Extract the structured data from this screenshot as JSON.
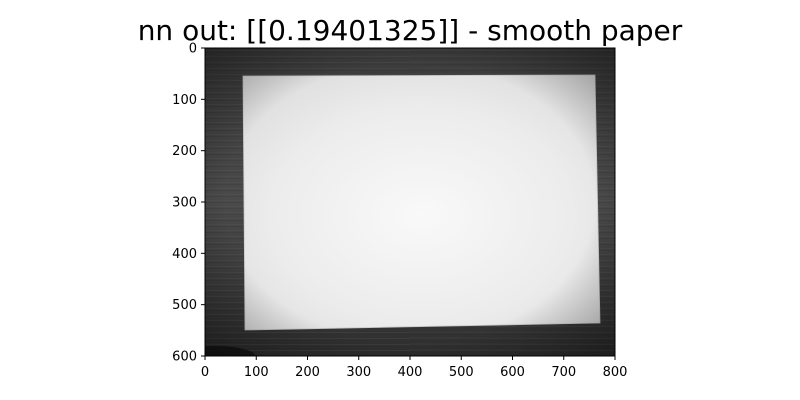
{
  "figure": {
    "title": "nn out: [[0.19401325]] - smooth paper",
    "image_description_icon": "grayscale-photo-icon",
    "image_extent": {
      "x_range": [
        0,
        800
      ],
      "y_range": [
        0,
        600
      ]
    },
    "x_ticks": [
      "0",
      "100",
      "200",
      "300",
      "400",
      "500",
      "600",
      "700",
      "800"
    ],
    "y_ticks": [
      "0",
      "100",
      "200",
      "300",
      "400",
      "500",
      "600"
    ]
  }
}
